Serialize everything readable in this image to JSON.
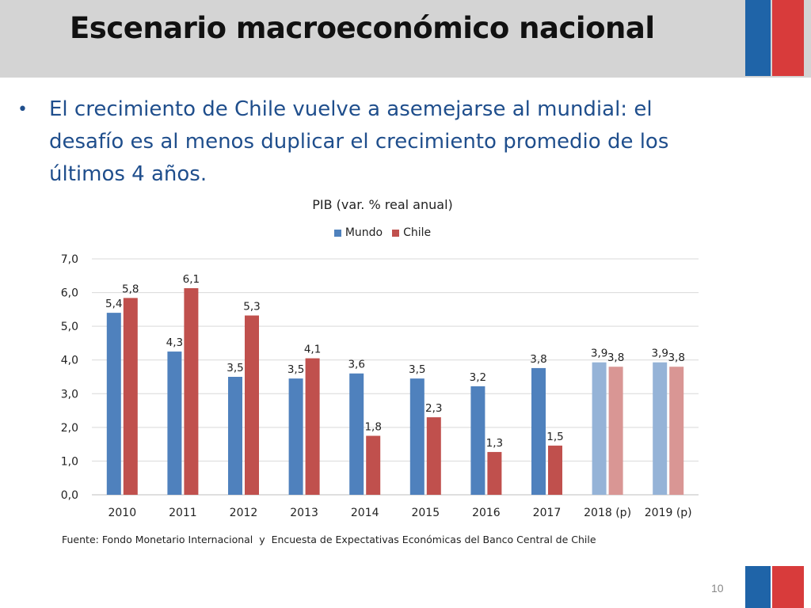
{
  "slide": {
    "title": "Escenario macroeconómico nacional",
    "bullet": "El crecimiento de Chile vuelve a asemejarse al mundial: el desafío es al menos duplicar el crecimiento promedio de los últimos 4 años.",
    "source": "Fuente: Fondo Monetario Internacional  y  Encuesta de Expectativas Económicas del Banco Central de Chile",
    "page_number": "10",
    "bullet_symbol": "•"
  },
  "colors": {
    "title_band": "#d4d4d4",
    "flag_blue": "#1f64a8",
    "flag_red": "#d83b3b",
    "mundo": "#4f81bd",
    "chile": "#c0504d",
    "mundo_projection": "#95b3d7",
    "chile_projection": "#d99694"
  },
  "chart_data": {
    "type": "bar",
    "title": "PIB (var. % real anual)",
    "xlabel": "",
    "ylabel": "",
    "ylim": [
      0,
      7
    ],
    "yticks": [
      "0,0",
      "1,0",
      "2,0",
      "3,0",
      "4,0",
      "5,0",
      "6,0",
      "7,0"
    ],
    "grid": true,
    "legend_position": "top",
    "categories": [
      "2010",
      "2011",
      "2012",
      "2013",
      "2014",
      "2015",
      "2016",
      "2017",
      "2018 (p)",
      "2019 (p)"
    ],
    "projected_categories": [
      "2018 (p)",
      "2019 (p)"
    ],
    "series": [
      {
        "name": "Mundo",
        "values": [
          5.4,
          4.25,
          3.5,
          3.45,
          3.6,
          3.45,
          3.22,
          3.76,
          3.93,
          3.93
        ],
        "labels": [
          "5,4",
          "4,3",
          "3,5",
          "3,5",
          "3,6",
          "3,5",
          "3,2",
          "3,8",
          "3,9",
          "3,9"
        ]
      },
      {
        "name": "Chile",
        "values": [
          5.84,
          6.13,
          5.32,
          4.05,
          1.75,
          2.3,
          1.27,
          1.46,
          3.8,
          3.8
        ],
        "labels": [
          "5,8",
          "6,1",
          "5,3",
          "4,1",
          "1,8",
          "2,3",
          "1,3",
          "1,5",
          "3,8",
          "3,8"
        ]
      }
    ]
  }
}
